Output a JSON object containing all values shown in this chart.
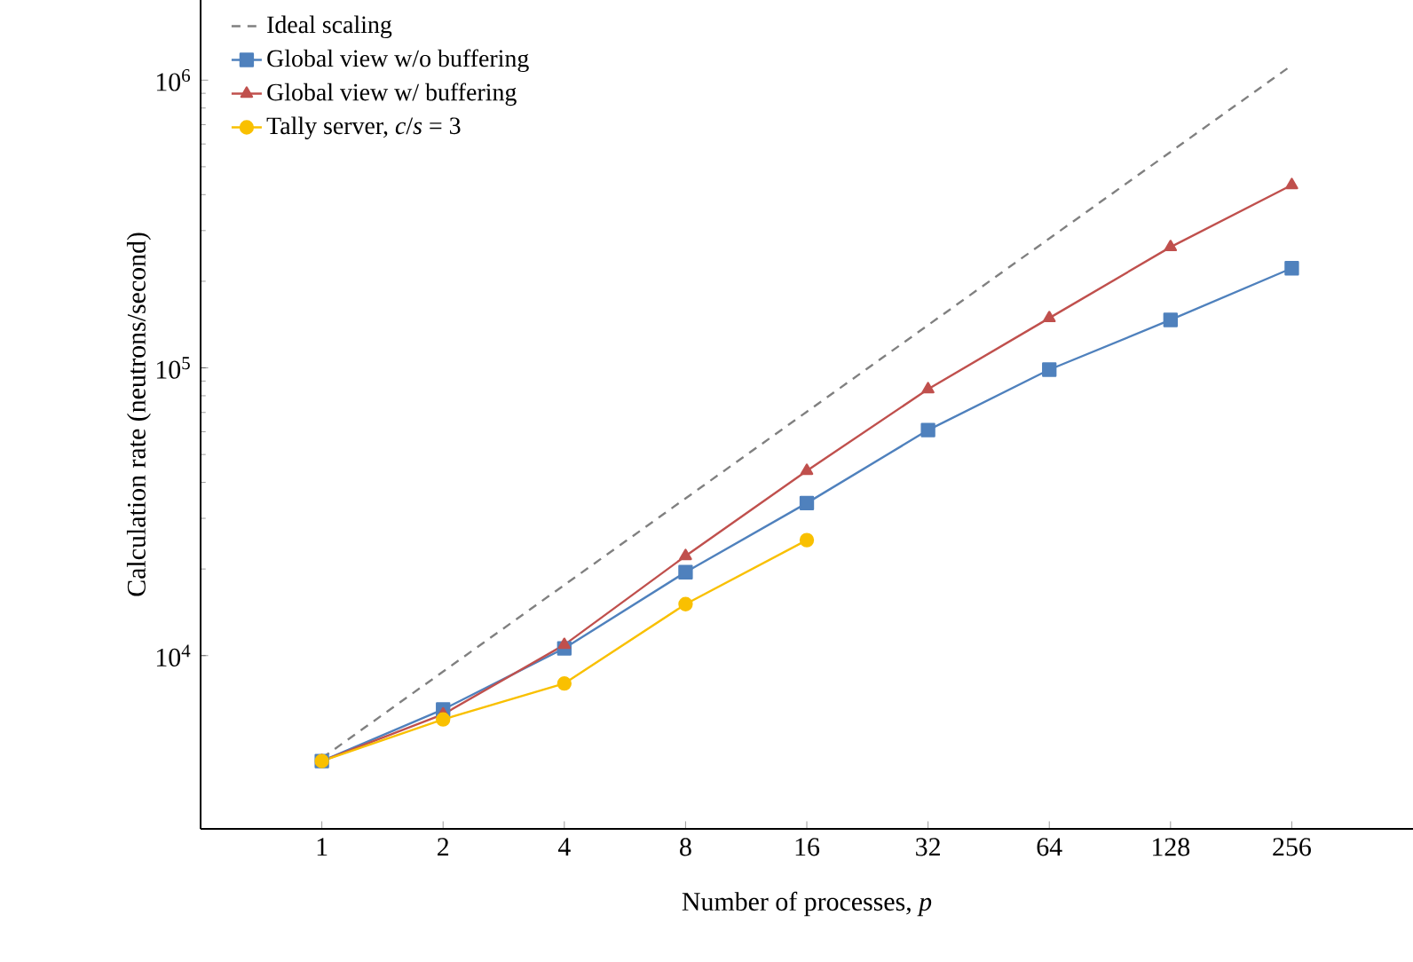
{
  "chart_data": {
    "type": "line",
    "xlabel": "Number of processes, *p*",
    "ylabel": "Calculation rate (neutrons/second)",
    "categories": [
      "1",
      "2",
      "4",
      "8",
      "16",
      "32",
      "64",
      "128",
      "256"
    ],
    "log": "y",
    "ylim": [
      2500,
      1900000
    ],
    "yticks": [
      {
        "value": 10000,
        "label": "10$^{4}$"
      },
      {
        "value": 100000,
        "label": "10$^{5}$"
      },
      {
        "value": 1000000,
        "label": "10$^{6}$"
      }
    ],
    "legend": "top left",
    "grid": false,
    "series": [
      {
        "name": "Ideal scaling",
        "color": "#808080",
        "marker": "none",
        "line_style": "dashed",
        "values": [
          4400,
          8800,
          17600,
          35200,
          70400,
          140800,
          281600,
          563200,
          1126400
        ]
      },
      {
        "name": "Global view w/o buffering",
        "color": "#4f81bd",
        "marker": "square",
        "line_style": "solid",
        "values": [
          4300,
          6500,
          10600,
          19500,
          33900,
          60800,
          98600,
          146800,
          222000
        ]
      },
      {
        "name": "Global view w/ buffering",
        "color": "#c0504d",
        "marker": "triangle",
        "line_style": "solid",
        "values": [
          4300,
          6250,
          10900,
          22200,
          43900,
          84300,
          149000,
          263000,
          432000
        ]
      },
      {
        "name": "Tally server, *c*/*s* = 3",
        "color": "#f9c000",
        "marker": "circle",
        "line_style": "solid",
        "values": [
          4300,
          6000,
          8000,
          15100,
          25200,
          null,
          null,
          null,
          null
        ]
      }
    ]
  }
}
